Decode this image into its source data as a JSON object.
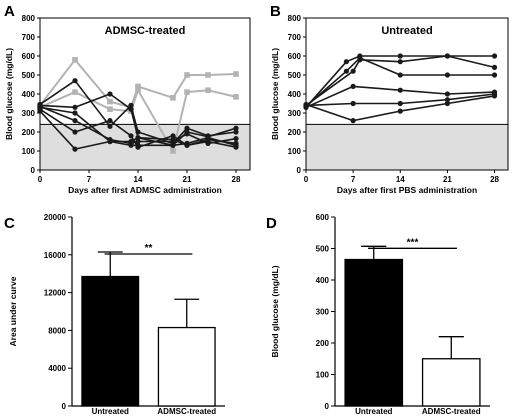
{
  "chart_data": [
    {
      "panel": "A",
      "type": "line",
      "title": "ADMSC-treated",
      "xlabel": "Days after first ADMSC administration",
      "ylabel": "Blood glucose (mg/dL)",
      "xlim": [
        0,
        30
      ],
      "ylim": [
        0,
        800
      ],
      "xticks": [
        0,
        7,
        14,
        21,
        28
      ],
      "yticks": [
        0,
        100,
        200,
        300,
        400,
        500,
        600,
        700,
        800
      ],
      "reference_band": [
        0,
        240
      ],
      "series": [
        {
          "color": "#b3b3b3",
          "marker": "square",
          "points": [
            [
              0,
              340
            ],
            [
              5,
              580
            ],
            [
              10,
              360
            ],
            [
              13,
              330
            ],
            [
              14,
              440
            ],
            [
              19,
              380
            ],
            [
              21,
              500
            ],
            [
              24,
              500
            ],
            [
              28,
              505
            ]
          ]
        },
        {
          "color": "#b3b3b3",
          "marker": "square",
          "points": [
            [
              0,
              330
            ],
            [
              5,
              410
            ],
            [
              10,
              320
            ],
            [
              13,
              310
            ],
            [
              14,
              420
            ],
            [
              19,
              100
            ],
            [
              21,
              410
            ],
            [
              24,
              420
            ],
            [
              28,
              385
            ]
          ]
        },
        {
          "color": "#1a1a1a",
          "marker": "circle",
          "points": [
            [
              0,
              345
            ],
            [
              5,
              470
            ],
            [
              10,
              230
            ],
            [
              13,
              340
            ],
            [
              14,
              200
            ],
            [
              19,
              140
            ],
            [
              21,
              220
            ],
            [
              24,
              180
            ],
            [
              28,
              200
            ]
          ]
        },
        {
          "color": "#1a1a1a",
          "marker": "circle",
          "points": [
            [
              0,
              340
            ],
            [
              5,
              330
            ],
            [
              10,
              400
            ],
            [
              13,
              320
            ],
            [
              14,
              170
            ],
            [
              19,
              130
            ],
            [
              21,
              200
            ],
            [
              24,
              175
            ],
            [
              28,
              220
            ]
          ]
        },
        {
          "color": "#1a1a1a",
          "marker": "circle",
          "points": [
            [
              0,
              330
            ],
            [
              5,
              300
            ],
            [
              10,
              150
            ],
            [
              13,
              150
            ],
            [
              14,
              170
            ],
            [
              19,
              160
            ],
            [
              21,
              130
            ],
            [
              24,
              160
            ],
            [
              28,
              140
            ]
          ]
        },
        {
          "color": "#1a1a1a",
          "marker": "circle",
          "points": [
            [
              0,
              335
            ],
            [
              5,
              260
            ],
            [
              10,
              160
            ],
            [
              13,
              140
            ],
            [
              14,
              150
            ],
            [
              19,
              150
            ],
            [
              21,
              190
            ],
            [
              24,
              140
            ],
            [
              28,
              165
            ]
          ]
        },
        {
          "color": "#1a1a1a",
          "marker": "circle",
          "points": [
            [
              0,
              320
            ],
            [
              5,
              200
            ],
            [
              10,
              260
            ],
            [
              13,
              180
            ],
            [
              14,
              120
            ],
            [
              19,
              180
            ],
            [
              21,
              130
            ],
            [
              24,
              150
            ],
            [
              28,
              120
            ]
          ]
        },
        {
          "color": "#1a1a1a",
          "marker": "circle",
          "points": [
            [
              0,
              310
            ],
            [
              5,
              110
            ],
            [
              10,
              150
            ],
            [
              13,
              130
            ],
            [
              14,
              130
            ],
            [
              19,
              130
            ],
            [
              21,
              140
            ],
            [
              24,
              170
            ],
            [
              28,
              130
            ]
          ]
        }
      ]
    },
    {
      "panel": "B",
      "type": "line",
      "title": "Untreated",
      "xlabel": "Days after first PBS administration",
      "ylabel": "Blood glucose (mg/dL)",
      "xlim": [
        0,
        30
      ],
      "ylim": [
        0,
        800
      ],
      "xticks": [
        0,
        7,
        14,
        21,
        28
      ],
      "yticks": [
        0,
        100,
        200,
        300,
        400,
        500,
        600,
        700,
        800
      ],
      "reference_band": [
        0,
        240
      ],
      "series": [
        {
          "color": "#1a1a1a",
          "marker": "circle",
          "points": [
            [
              0,
              330
            ],
            [
              6,
              570
            ],
            [
              8,
              600
            ],
            [
              14,
              600
            ],
            [
              21,
              600
            ],
            [
              28,
              600
            ]
          ]
        },
        {
          "color": "#1a1a1a",
          "marker": "circle",
          "points": [
            [
              0,
              335
            ],
            [
              6,
              520
            ],
            [
              8,
              590
            ],
            [
              14,
              500
            ],
            [
              21,
              500
            ],
            [
              28,
              500
            ]
          ]
        },
        {
          "color": "#1a1a1a",
          "marker": "circle",
          "points": [
            [
              0,
              340
            ],
            [
              7,
              520
            ],
            [
              8,
              580
            ],
            [
              14,
              570
            ],
            [
              21,
              600
            ],
            [
              28,
              540
            ]
          ]
        },
        {
          "color": "#1a1a1a",
          "marker": "circle",
          "points": [
            [
              0,
              330
            ],
            [
              7,
              440
            ],
            [
              14,
              420
            ],
            [
              21,
              400
            ],
            [
              28,
              410
            ]
          ]
        },
        {
          "color": "#1a1a1a",
          "marker": "circle",
          "points": [
            [
              0,
              340
            ],
            [
              7,
              350
            ],
            [
              14,
              350
            ],
            [
              21,
              370
            ],
            [
              28,
              400
            ]
          ]
        },
        {
          "color": "#1a1a1a",
          "marker": "circle",
          "points": [
            [
              0,
              345
            ],
            [
              7,
              260
            ],
            [
              14,
              310
            ],
            [
              21,
              350
            ],
            [
              28,
              390
            ]
          ]
        }
      ]
    },
    {
      "panel": "C",
      "type": "bar",
      "categories": [
        "Untreated",
        "ADMSC-treated"
      ],
      "values": [
        13700,
        8300
      ],
      "errors": [
        2600,
        3000
      ],
      "fill_colors": [
        "#000000",
        "#ffffff"
      ],
      "ylabel": "Area under curve",
      "ylim": [
        0,
        20000
      ],
      "yticks": [
        0,
        4000,
        8000,
        12000,
        16000,
        20000
      ],
      "significance": "**"
    },
    {
      "panel": "D",
      "type": "bar",
      "categories": [
        "Untreated",
        "ADMSC-treated"
      ],
      "values": [
        465,
        150
      ],
      "errors": [
        42,
        70
      ],
      "fill_colors": [
        "#000000",
        "#ffffff"
      ],
      "ylabel": "Blood glucose (mg/dL)",
      "ylim": [
        0,
        600
      ],
      "yticks": [
        0,
        100,
        200,
        300,
        400,
        500,
        600
      ],
      "significance": "***"
    }
  ]
}
